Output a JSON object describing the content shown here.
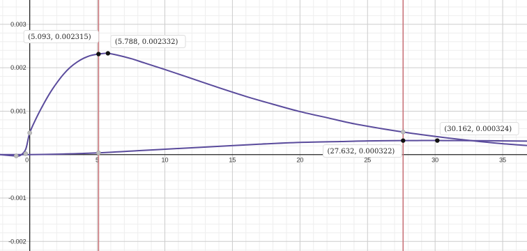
{
  "chart_data": {
    "type": "line",
    "xlim": [
      -2.2,
      36.8
    ],
    "ylim": [
      -0.00222,
      0.00356
    ],
    "grid": true,
    "x_ticks": [
      {
        "value": 0,
        "label": "0"
      },
      {
        "value": 5,
        "label": "5"
      },
      {
        "value": 10,
        "label": "10"
      },
      {
        "value": 15,
        "label": "15"
      },
      {
        "value": 20,
        "label": "20"
      },
      {
        "value": 25,
        "label": "25"
      },
      {
        "value": 30,
        "label": "30"
      },
      {
        "value": 35,
        "label": "35"
      }
    ],
    "y_ticks": [
      {
        "value": 0.003,
        "label": "0.003"
      },
      {
        "value": 0.002,
        "label": "0.002"
      },
      {
        "value": 0.001,
        "label": "0.001"
      },
      {
        "value": -0.001,
        "label": "-0.001"
      },
      {
        "value": -0.002,
        "label": "-0.002"
      }
    ],
    "vertical_lines": [
      {
        "x": 5.093,
        "color": "#c9747a"
      },
      {
        "x": 27.632,
        "color": "#c9747a"
      }
    ],
    "series": [
      {
        "color": "#5a4b9c",
        "points": [
          [
            -2.2,
            0.0
          ],
          [
            -1.5,
            -2e-05
          ],
          [
            -1.0,
            -3e-05
          ],
          [
            -0.7,
            -2e-05
          ],
          [
            -0.3,
            0.00012
          ],
          [
            0.0,
            0.0005
          ],
          [
            0.5,
            0.00085
          ],
          [
            1.0,
            0.00115
          ],
          [
            1.5,
            0.00142
          ],
          [
            2.0,
            0.00165
          ],
          [
            2.5,
            0.00185
          ],
          [
            3.0,
            0.00201
          ],
          [
            3.5,
            0.00213
          ],
          [
            4.0,
            0.00222
          ],
          [
            4.5,
            0.00228
          ],
          [
            5.093,
            0.002315
          ],
          [
            5.5,
            0.00233
          ],
          [
            5.788,
            0.002332
          ],
          [
            6.5,
            0.00229
          ],
          [
            7.5,
            0.00221
          ],
          [
            8.5,
            0.00211
          ],
          [
            10.0,
            0.00196
          ],
          [
            12.0,
            0.00175
          ],
          [
            14.0,
            0.00154
          ],
          [
            16.0,
            0.00134
          ],
          [
            18.0,
            0.00116
          ],
          [
            20.0,
            0.00099
          ],
          [
            22.0,
            0.00085
          ],
          [
            24.0,
            0.00071
          ],
          [
            26.0,
            0.0006
          ],
          [
            27.632,
            0.00052
          ],
          [
            29.0,
            0.00046
          ],
          [
            31.0,
            0.00038
          ],
          [
            33.0,
            0.00031
          ],
          [
            35.0,
            0.00025
          ],
          [
            36.8,
            0.00021
          ]
        ]
      },
      {
        "color": "#5a4b9c",
        "points": [
          [
            -2.2,
            0.0
          ],
          [
            0.0,
            0.0
          ],
          [
            2.0,
            1e-05
          ],
          [
            5.0,
            4e-05
          ],
          [
            8.0,
            9e-05
          ],
          [
            11.0,
            0.00014
          ],
          [
            14.0,
            0.00019
          ],
          [
            17.0,
            0.00024
          ],
          [
            20.0,
            0.00028
          ],
          [
            23.0,
            0.0003
          ],
          [
            25.0,
            0.000315
          ],
          [
            27.632,
            0.000322
          ],
          [
            29.0,
            0.000324
          ],
          [
            30.162,
            0.000324
          ],
          [
            32.0,
            0.000322
          ],
          [
            34.0,
            0.000318
          ],
          [
            36.8,
            0.00031
          ]
        ]
      }
    ],
    "gray_markers": [
      [
        -1.0,
        -3e-05
      ],
      [
        -0.3,
        2e-05
      ],
      [
        0.0,
        0.0005
      ],
      [
        5.093,
        4e-05
      ],
      [
        27.632,
        0.00052
      ]
    ],
    "labeled_points": [
      {
        "x": 5.093,
        "y": 0.002315,
        "label": "(5.093, 0.002315)",
        "placement": "left-above"
      },
      {
        "x": 5.788,
        "y": 0.002332,
        "label": "(5.788, 0.002332)",
        "placement": "right-above"
      },
      {
        "x": 27.632,
        "y": 0.000322,
        "label": "(27.632, 0.000322)",
        "placement": "left-below"
      },
      {
        "x": 30.162,
        "y": 0.000324,
        "label": "(30.162, 0.000324)",
        "placement": "right-above"
      }
    ]
  }
}
